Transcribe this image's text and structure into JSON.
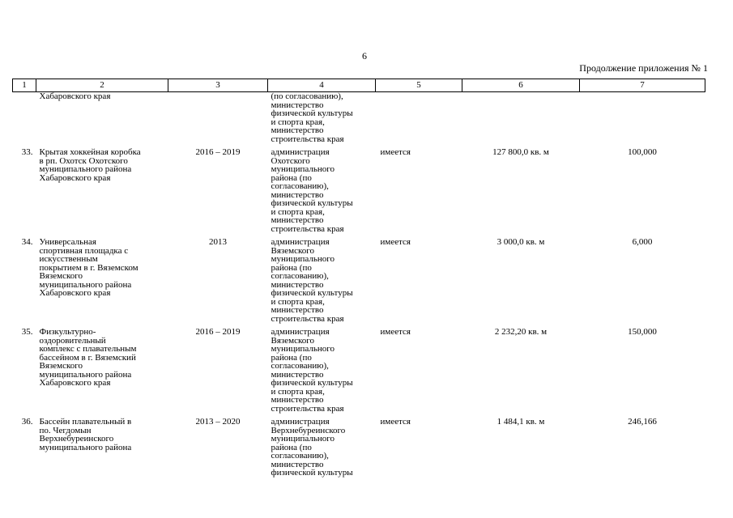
{
  "page": {
    "number": "6",
    "continuation_label": "Продолжение приложения № 1"
  },
  "table": {
    "headers": [
      "1",
      "2",
      "3",
      "4",
      "5",
      "6",
      "7"
    ],
    "continuation_row": {
      "name": "Хабаровского края",
      "organization": "(по согласованию),\nминистерство\nфизической культуры\nи спорта края,\nминистерство\nстроительства края"
    },
    "rows": [
      {
        "num": "33.",
        "name": "Крытая хоккейная коробка\nв рп. Охотск Охотского\nмуниципального района\nХабаровского края",
        "years": "2016 – 2019",
        "organization": "администрация\nОхотского\nмуниципального\nрайона (по\nсогласованию),\nминистерство\nфизической культуры\nи спорта края,\nминистерство\nстроительства края",
        "status": "имеется",
        "area": "127 800,0 кв. м",
        "cost": "100,000"
      },
      {
        "num": "34.",
        "name": "Универсальная\nспортивная площадка с\nискусственным\nпокрытием в г. Вяземском\nВяземского\nмуниципального района\nХабаровского края",
        "years": "2013",
        "organization": "администрация\nВяземского\nмуниципального\nрайона (по\nсогласованию),\nминистерство\nфизической культуры\nи спорта края,\nминистерство\nстроительства края",
        "status": "имеется",
        "area": "3 000,0 кв. м",
        "cost": "6,000"
      },
      {
        "num": "35.",
        "name": "Физкультурно-\nоздоровительный\nкомплекс с плавательным\nбассейном в г. Вяземский\nВяземского\nмуниципального района\nХабаровского края",
        "years": "2016 – 2019",
        "organization": "администрация\nВяземского\nмуниципального\nрайона (по\nсогласованию),\nминистерство\nфизической культуры\nи спорта края,\nминистерство\nстроительства края",
        "status": "имеется",
        "area": "2 232,20 кв. м",
        "cost": "150,000"
      },
      {
        "num": "36.",
        "name": "Бассейн плавательный в\nпо. Чегдомын\nВерхнебуреинского\nмуниципального района",
        "years": "2013 – 2020",
        "organization": "администрация\nВерхнебуреинского\nмуниципального\nрайона (по\nсогласованию),\nминистерство\nфизической культуры",
        "status": "имеется",
        "area": "1 484,1 кв. м",
        "cost": "246,166"
      }
    ]
  }
}
